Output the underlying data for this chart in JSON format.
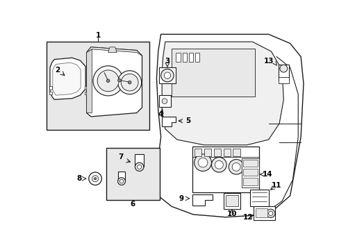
{
  "bg_color": "#ffffff",
  "shaded_box_color": "#e8e8e8",
  "line_color": "#1a1a1a",
  "text_color": "#000000"
}
